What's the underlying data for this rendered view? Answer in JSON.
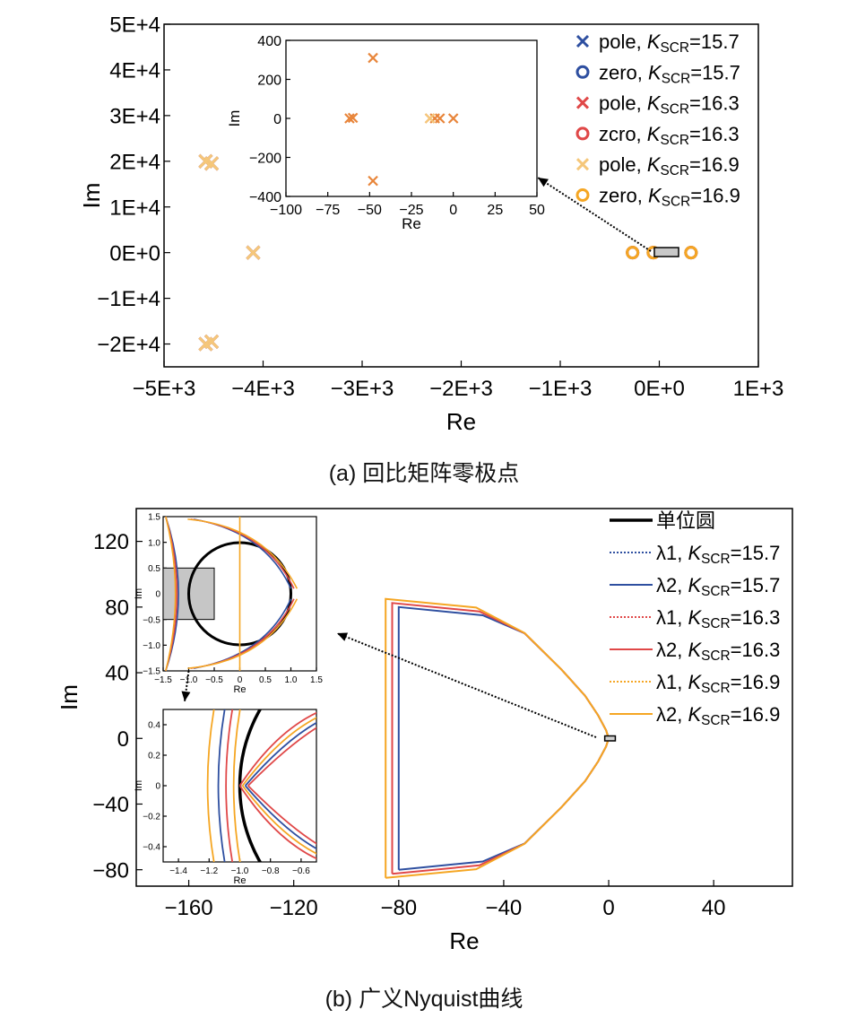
{
  "figure": {
    "caption_a": "(a) 回比矩阵零极点",
    "caption_b": "(b) 广义Nyquist曲线"
  },
  "chart_data": [
    {
      "id": "a-main",
      "type": "scatter",
      "xlabel": "Re",
      "ylabel": "Im",
      "xlim": [
        -5000,
        1000
      ],
      "ylim": [
        -25000,
        50000
      ],
      "xtick_values": [
        -5000,
        -4000,
        -3000,
        -2000,
        -1000,
        0,
        1000
      ],
      "xtick_labels": [
        "−5E+3",
        "−4E+3",
        "−3E+3",
        "−2E+3",
        "−1E+3",
        "0E+0",
        "1E+3"
      ],
      "ytick_values": [
        50000,
        40000,
        30000,
        20000,
        10000,
        0,
        -10000,
        -20000
      ],
      "ytick_labels": [
        "5E+4",
        "4E+4",
        "3E+4",
        "2E+4",
        "1E+4",
        "0E+0",
        "−1E+4",
        "−2E+4"
      ],
      "legend_position": "top-right",
      "series": [
        {
          "name": "pole, K",
          "sub": "SCR",
          "suffix": "=15.7",
          "marker": "x",
          "color": "#2e4fa0",
          "points": [
            [
              -4580,
              20000
            ],
            [
              -4520,
              19500
            ],
            [
              -4580,
              -20000
            ],
            [
              -4520,
              -19500
            ],
            [
              -4100,
              0
            ]
          ]
        },
        {
          "name": "zero, K",
          "sub": "SCR",
          "suffix": "=15.7",
          "marker": "o",
          "color": "#2e4fa0",
          "points": [
            [
              -270,
              0
            ],
            [
              -60,
              0
            ],
            [
              320,
              0
            ]
          ]
        },
        {
          "name": "pole, K",
          "sub": "SCR",
          "suffix": "=16.3",
          "marker": "x",
          "color": "#e04848",
          "points": [
            [
              -4580,
              20000
            ],
            [
              -4520,
              19500
            ],
            [
              -4580,
              -20000
            ],
            [
              -4520,
              -19500
            ],
            [
              -4100,
              0
            ]
          ]
        },
        {
          "name": "zcro, K",
          "sub": "SCR",
          "suffix": "=16.3",
          "marker": "o",
          "color": "#e04848",
          "points": [
            [
              -270,
              0
            ],
            [
              -60,
              0
            ],
            [
              320,
              0
            ]
          ]
        },
        {
          "name": "pole, K",
          "sub": "SCR",
          "suffix": "=16.9",
          "marker": "x",
          "color": "#f5c77a",
          "points": [
            [
              -4580,
              20000
            ],
            [
              -4520,
              19500
            ],
            [
              -4580,
              -20000
            ],
            [
              -4520,
              -19500
            ],
            [
              -4100,
              0
            ]
          ]
        },
        {
          "name": "zero, K",
          "sub": "SCR",
          "suffix": "=16.9",
          "marker": "o",
          "color": "#f5a623",
          "points": [
            [
              -270,
              0
            ],
            [
              -60,
              0
            ],
            [
              320,
              0
            ]
          ]
        }
      ],
      "zoom_box_x": [
        -50,
        50
      ],
      "zoom_box_y": [
        -400,
        400
      ]
    },
    {
      "id": "a-inset",
      "type": "scatter",
      "xlabel": "Re",
      "ylabel": "Im",
      "xlim": [
        -100,
        50
      ],
      "ylim": [
        -400,
        400
      ],
      "xtick_values": [
        -100,
        -75,
        -50,
        -25,
        0,
        25,
        50
      ],
      "xtick_labels": [
        "−100",
        "−75",
        "−50",
        "−25",
        "0",
        "25",
        "50"
      ],
      "ytick_values": [
        400,
        200,
        0,
        -200,
        -400
      ],
      "ytick_labels": [
        "400",
        "200",
        "0",
        "−200",
        "−400"
      ],
      "points": [
        [
          -48,
          310
        ],
        [
          -48,
          -320
        ],
        [
          -62,
          0
        ],
        [
          -60,
          3
        ],
        [
          -14,
          0
        ],
        [
          -11,
          0
        ],
        [
          -8,
          0
        ],
        [
          0,
          0
        ]
      ],
      "color": "#e8853a"
    },
    {
      "id": "b-main",
      "type": "line",
      "xlabel": "Re",
      "ylabel": "Im",
      "xlim": [
        -180,
        70
      ],
      "ylim": [
        -90,
        140
      ],
      "xtick_values": [
        -160,
        -120,
        -80,
        -40,
        0,
        40
      ],
      "xtick_labels": [
        "−160",
        "−120",
        "−80",
        "−40",
        "0",
        "40"
      ],
      "ytick_values": [
        120,
        80,
        40,
        0,
        -40,
        -80
      ],
      "ytick_labels": [
        "120",
        "80",
        "40",
        "0",
        "−40",
        "−80"
      ],
      "legend_position": "top-right",
      "series": [
        {
          "name": "单位圆",
          "sub": "",
          "suffix": "",
          "color": "#000000",
          "dash": false,
          "width": 3.2
        },
        {
          "name": "λ1, K",
          "sub": "SCR",
          "suffix": "=15.7",
          "color": "#2e4fa0",
          "dash": true,
          "width": 1.6
        },
        {
          "name": "λ2, K",
          "sub": "SCR",
          "suffix": "=15.7",
          "color": "#2e4fa0",
          "dash": false,
          "width": 1.6,
          "boundary_re": -80,
          "top_im": 80
        },
        {
          "name": "λ1, K",
          "sub": "SCR",
          "suffix": "=16.3",
          "color": "#e04848",
          "dash": true,
          "width": 1.6
        },
        {
          "name": "λ2, K",
          "sub": "SCR",
          "suffix": "=16.3",
          "color": "#e04848",
          "dash": false,
          "width": 1.6,
          "boundary_re": -82.5,
          "top_im": 82.5
        },
        {
          "name": "λ1, K",
          "sub": "SCR",
          "suffix": "=16.9",
          "color": "#f5a623",
          "dash": true,
          "width": 1.6
        },
        {
          "name": "λ2, K",
          "sub": "SCR",
          "suffix": "=16.9",
          "color": "#f5a623",
          "dash": false,
          "width": 1.6,
          "boundary_re": -85,
          "top_im": 85
        }
      ]
    },
    {
      "id": "b-inset1",
      "type": "line",
      "xlabel": "Re",
      "ylabel": "Im",
      "xlim": [
        -1.5,
        1.5
      ],
      "ylim": [
        -1.5,
        1.5
      ],
      "xtick_values": [
        -1.5,
        -1.0,
        -0.5,
        0,
        0.5,
        1.0,
        1.5
      ],
      "xtick_labels": [
        "−1.5",
        "−1.0",
        "−0.5",
        "0",
        "0.5",
        "1.0",
        "1.5"
      ],
      "ytick_values": [
        1.5,
        1.0,
        0.5,
        0,
        -0.5,
        -1.0,
        -1.5
      ],
      "ytick_labels": [
        "1.5",
        "1.0",
        "0.5",
        "0",
        "−0.5",
        "−1.0",
        "−1.5"
      ],
      "zoom_box_x": [
        -1.5,
        -0.5
      ],
      "zoom_box_y": [
        -0.5,
        0.5
      ]
    },
    {
      "id": "b-inset2",
      "type": "line",
      "xlabel": "Re",
      "ylabel": "Im",
      "xlim": [
        -1.5,
        -0.5
      ],
      "ylim": [
        -0.5,
        0.5
      ],
      "xtick_values": [
        -1.4,
        -1.2,
        -1.0,
        -0.8,
        -0.6
      ],
      "xtick_labels": [
        "−1.4",
        "−1.2",
        "−1.0",
        "−0.8",
        "−0.6"
      ],
      "ytick_values": [
        0.4,
        0.2,
        0,
        -0.2,
        -0.4
      ],
      "ytick_labels": [
        "0.4",
        "0.2",
        "0",
        "−0.2",
        "−0.4"
      ]
    }
  ]
}
